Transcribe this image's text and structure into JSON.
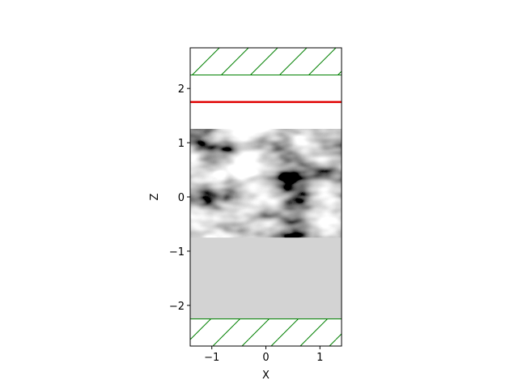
{
  "chart_data": {
    "type": "heatmap",
    "title": "",
    "xlabel": "X",
    "ylabel": "Z",
    "xlim": [
      -1.4,
      1.4
    ],
    "ylim": [
      -2.75,
      2.75
    ],
    "x_ticks": [
      -1,
      0,
      1
    ],
    "y_ticks": [
      -2,
      -1,
      0,
      1,
      2
    ],
    "x_tick_labels": [
      "−1",
      "0",
      "1"
    ],
    "y_tick_labels": [
      "−2",
      "−1",
      "0",
      "1",
      "2"
    ],
    "grid": false,
    "regions": [
      {
        "name": "pml-top",
        "z_range": [
          2.25,
          2.75
        ],
        "fill": "hatched",
        "color": "#008000"
      },
      {
        "name": "textured-layer",
        "z_range": [
          -0.75,
          1.25
        ],
        "fill": "grayscale-texture"
      },
      {
        "name": "substrate",
        "z_range": [
          -2.25,
          -0.75
        ],
        "fill": "solid",
        "color": "#d3d3d3"
      },
      {
        "name": "pml-bottom",
        "z_range": [
          -2.75,
          -2.25
        ],
        "fill": "hatched",
        "color": "#008000"
      }
    ],
    "lines": [
      {
        "name": "source-line",
        "z": 1.75,
        "color": "#e00000"
      }
    ]
  }
}
